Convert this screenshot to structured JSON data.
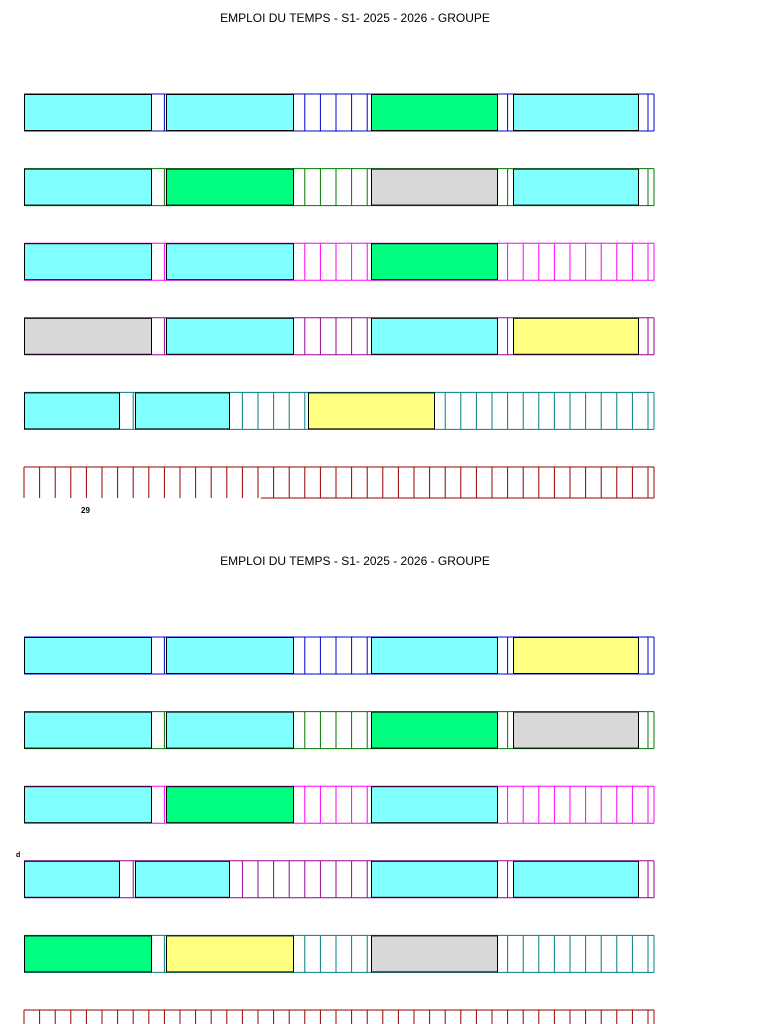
{
  "headers": [
    {
      "title": "EMPLOI DU TEMPS - S1- 2025 - 2026 - GROUPE"
    },
    {
      "title": "EMPLOI DU TEMPS - S1- 2025 - 2026 - GROUPE"
    }
  ],
  "labels": {
    "week_number": "29",
    "marker": "d"
  },
  "colors": {
    "cyan": "#80ffff",
    "green": "#00ff80",
    "gray": "#d8d8d8",
    "yellow": "#ffff80",
    "blue": "#0000cc",
    "darkgreen": "#007700",
    "magenta": "#ff00ff",
    "purple": "#990099",
    "teal": "#008080",
    "darkred": "#990000"
  },
  "timetables": [
    {
      "days": [
        {
          "line": "blue",
          "sessions": [
            {
              "slot": "A",
              "color": "cyan"
            },
            {
              "slot": "B",
              "color": "cyan"
            },
            {
              "slot": "C",
              "color": "green"
            },
            {
              "slot": "D",
              "color": "cyan"
            }
          ]
        },
        {
          "line": "darkgreen",
          "sessions": [
            {
              "slot": "A",
              "color": "cyan"
            },
            {
              "slot": "B",
              "color": "green"
            },
            {
              "slot": "C",
              "color": "gray"
            },
            {
              "slot": "D",
              "color": "cyan"
            }
          ]
        },
        {
          "line": "magenta",
          "sessions": [
            {
              "slot": "A",
              "color": "cyan"
            },
            {
              "slot": "B",
              "color": "cyan"
            },
            {
              "slot": "C",
              "color": "green"
            }
          ]
        },
        {
          "line": "purple",
          "sessions": [
            {
              "slot": "A",
              "color": "gray"
            },
            {
              "slot": "B",
              "color": "cyan"
            },
            {
              "slot": "C",
              "color": "cyan"
            },
            {
              "slot": "D",
              "color": "yellow"
            }
          ]
        },
        {
          "line": "teal",
          "sessions": [
            {
              "slot": "S1",
              "color": "cyan"
            },
            {
              "slot": "S2",
              "color": "cyan"
            },
            {
              "slot": "S3",
              "color": "yellow"
            }
          ]
        },
        {
          "line": "darkred",
          "sessions": []
        }
      ]
    },
    {
      "days": [
        {
          "line": "blue",
          "sessions": [
            {
              "slot": "A",
              "color": "cyan"
            },
            {
              "slot": "B",
              "color": "cyan"
            },
            {
              "slot": "C",
              "color": "cyan"
            },
            {
              "slot": "D",
              "color": "yellow"
            }
          ]
        },
        {
          "line": "darkgreen",
          "sessions": [
            {
              "slot": "A",
              "color": "cyan"
            },
            {
              "slot": "B",
              "color": "cyan"
            },
            {
              "slot": "C",
              "color": "green"
            },
            {
              "slot": "D",
              "color": "gray"
            }
          ]
        },
        {
          "line": "magenta",
          "sessions": [
            {
              "slot": "A",
              "color": "cyan"
            },
            {
              "slot": "B",
              "color": "green"
            },
            {
              "slot": "C",
              "color": "cyan"
            }
          ]
        },
        {
          "line": "purple",
          "sessions": [
            {
              "slot": "S1",
              "color": "cyan"
            },
            {
              "slot": "S2",
              "color": "cyan"
            },
            {
              "slot": "C",
              "color": "cyan"
            },
            {
              "slot": "D",
              "color": "cyan"
            }
          ]
        },
        {
          "line": "teal",
          "sessions": [
            {
              "slot": "A",
              "color": "green"
            },
            {
              "slot": "B",
              "color": "yellow"
            },
            {
              "slot": "C",
              "color": "gray"
            }
          ]
        },
        {
          "line": "darkred",
          "sessions": []
        }
      ]
    }
  ]
}
